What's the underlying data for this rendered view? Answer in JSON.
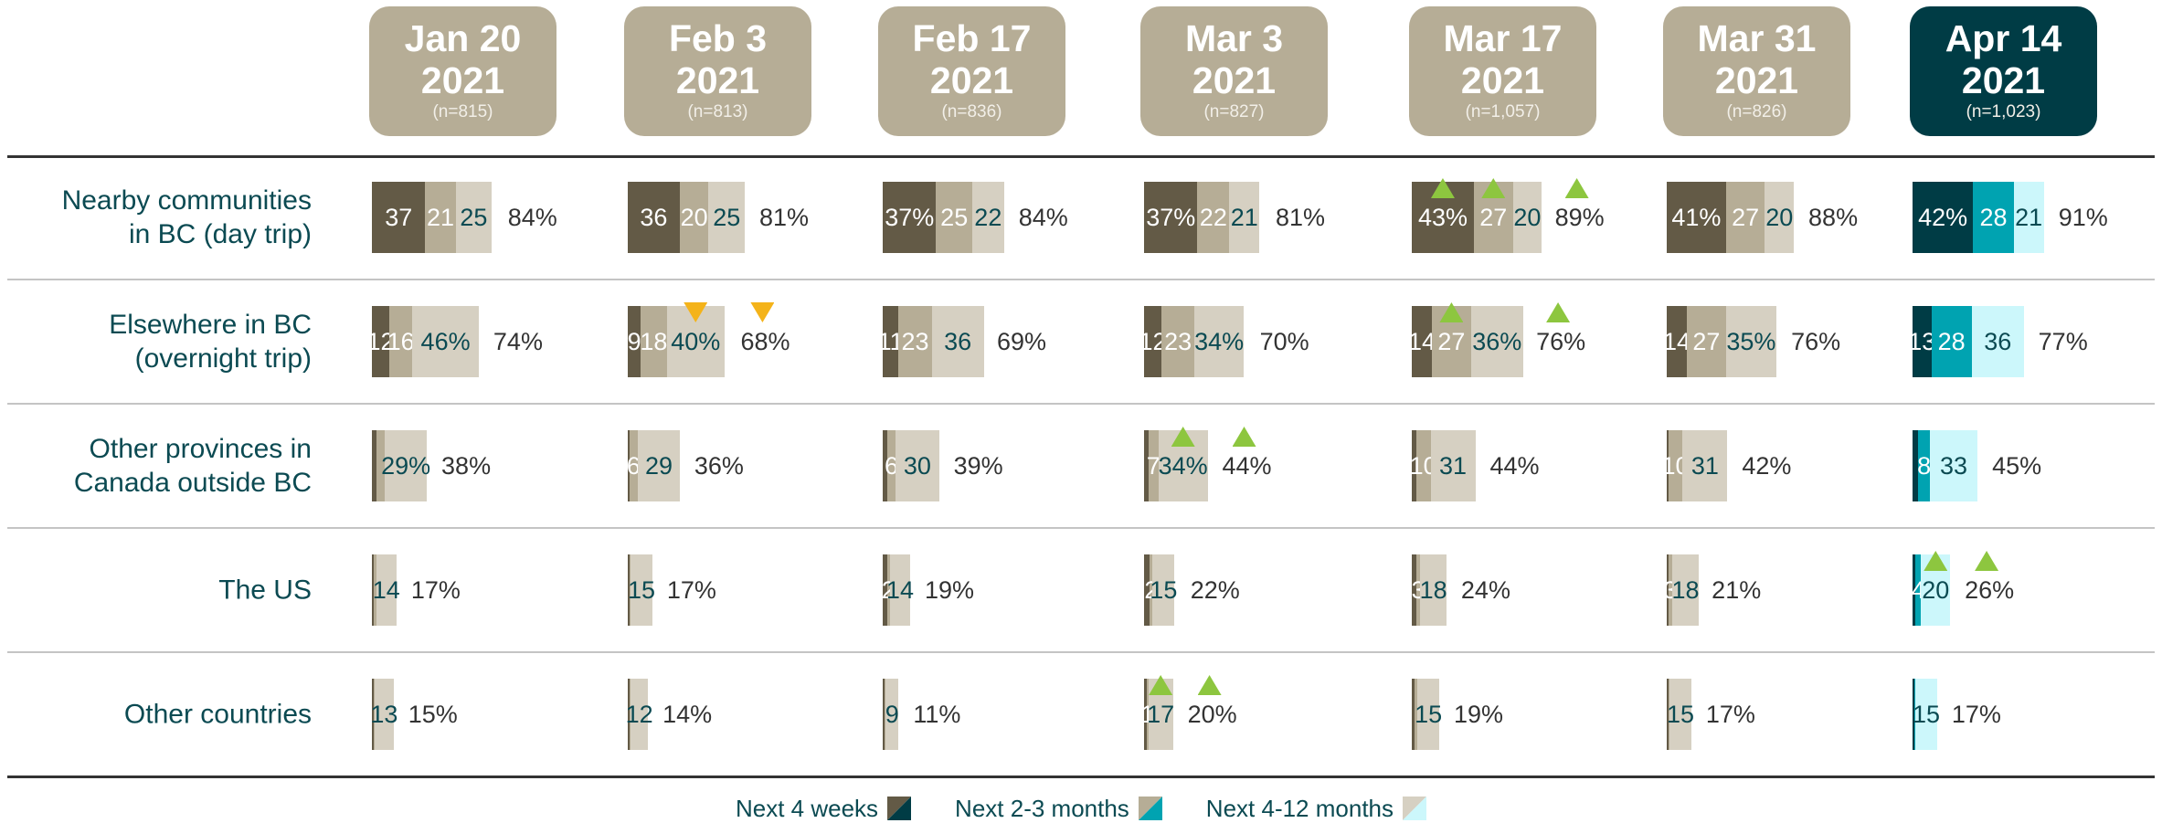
{
  "chart_data": {
    "type": "stacked-bar-grid",
    "groups": [
      {
        "label": "Jan 20",
        "year": "2021",
        "n": "(n=815)",
        "highlighted": false
      },
      {
        "label": "Feb 3",
        "year": "2021",
        "n": "(n=813)",
        "highlighted": false
      },
      {
        "label": "Feb 17",
        "year": "2021",
        "n": "(n=836)",
        "highlighted": false
      },
      {
        "label": "Mar 3",
        "year": "2021",
        "n": "(n=827)",
        "highlighted": false
      },
      {
        "label": "Mar 17",
        "year": "2021",
        "n": "(n=1,057)",
        "highlighted": false
      },
      {
        "label": "Mar 31",
        "year": "2021",
        "n": "(n=826)",
        "highlighted": false
      },
      {
        "label": "Apr 14",
        "year": "2021",
        "n": "(n=1,023)",
        "highlighted": true
      }
    ],
    "categories": [
      "Nearby communities\nin BC (day trip)",
      "Elsewhere in BC\n(overnight trip)",
      "Other provinces in\nCanada outside BC",
      "The US",
      "Other countries"
    ],
    "header_color": "#b6ad96",
    "highlight_color": "#003c45",
    "marker_colors": {
      "up": "#8dc63f",
      "down": "#f4b31a"
    },
    "series": [
      {
        "name": "Next 4 weeks",
        "color": "#635a46",
        "color_current": "#003c45",
        "values": [
          [
            37,
            12,
            3,
            1,
            1
          ],
          [
            36,
            9,
            1,
            1,
            1
          ],
          [
            37,
            11,
            3,
            3,
            1
          ],
          [
            37,
            12,
            3,
            4,
            2
          ],
          [
            43,
            14,
            3,
            3,
            2
          ],
          [
            41,
            14,
            1,
            1,
            1
          ],
          [
            42,
            13,
            4,
            2,
            1
          ]
        ],
        "value_labels": [
          [
            "37",
            "12",
            null,
            null,
            null
          ],
          [
            "36",
            "9",
            null,
            null,
            null
          ],
          [
            "37%",
            "11",
            null,
            null,
            null
          ],
          [
            "37%",
            "12",
            null,
            null,
            null
          ],
          [
            "43%",
            "14",
            null,
            null,
            null
          ],
          [
            "41%",
            "14",
            null,
            null,
            null
          ],
          [
            "42%",
            "13",
            null,
            null,
            null
          ]
        ],
        "changes": [
          [
            null,
            null,
            null,
            null,
            null
          ],
          [
            null,
            null,
            null,
            null,
            null
          ],
          [
            null,
            null,
            null,
            null,
            null
          ],
          [
            null,
            null,
            null,
            null,
            null
          ],
          [
            "up",
            null,
            null,
            null,
            null
          ],
          [
            null,
            null,
            null,
            null,
            null
          ],
          [
            null,
            null,
            null,
            null,
            null
          ]
        ]
      },
      {
        "name": "Next 2-3 months",
        "color": "#b6ad96",
        "color_current": "#00a3b1",
        "values": [
          [
            21,
            16,
            6,
            2,
            1
          ],
          [
            20,
            18,
            6,
            1,
            1
          ],
          [
            25,
            23,
            6,
            2,
            1
          ],
          [
            22,
            23,
            7,
            2,
            1
          ],
          [
            27,
            27,
            10,
            3,
            2
          ],
          [
            27,
            27,
            10,
            3,
            1
          ],
          [
            28,
            28,
            8,
            4,
            1
          ]
        ],
        "value_labels": [
          [
            "21",
            "16",
            null,
            null,
            null
          ],
          [
            "20",
            "18",
            "6",
            null,
            null
          ],
          [
            "25",
            "23",
            "6",
            "2",
            null
          ],
          [
            "22",
            "23",
            "7",
            "2",
            "1"
          ],
          [
            "27",
            "27",
            "10",
            "3",
            null
          ],
          [
            "27",
            "27",
            "10",
            "3",
            null
          ],
          [
            "28",
            "28",
            "8",
            "4",
            null
          ]
        ],
        "changes": [
          [
            null,
            null,
            null,
            null,
            null
          ],
          [
            null,
            null,
            null,
            null,
            null
          ],
          [
            null,
            null,
            null,
            null,
            null
          ],
          [
            null,
            null,
            null,
            null,
            null
          ],
          [
            "up",
            "up",
            null,
            null,
            null
          ],
          [
            null,
            null,
            null,
            null,
            null
          ],
          [
            null,
            null,
            null,
            null,
            null
          ]
        ]
      },
      {
        "name": "Next 4-12 months",
        "color": "#d6d0c2",
        "color_current": "#ccf7fb",
        "values": [
          [
            25,
            46,
            29,
            14,
            13
          ],
          [
            25,
            40,
            29,
            15,
            12
          ],
          [
            22,
            36,
            30,
            14,
            9
          ],
          [
            21,
            34,
            34,
            15,
            17
          ],
          [
            20,
            36,
            31,
            18,
            15
          ],
          [
            20,
            35,
            31,
            18,
            15
          ],
          [
            21,
            36,
            33,
            20,
            15
          ]
        ],
        "value_labels": [
          [
            "25",
            "46%",
            "29%",
            "14",
            "13"
          ],
          [
            "25",
            "40%",
            "29",
            "15",
            "12"
          ],
          [
            "22",
            "36",
            "30",
            "14",
            "9"
          ],
          [
            "21",
            "34%",
            "34%",
            "15",
            "17"
          ],
          [
            "20",
            "36%",
            "31",
            "18",
            "15"
          ],
          [
            "20",
            "35%",
            "31",
            "18",
            "15"
          ],
          [
            "21",
            "36",
            "33",
            "20",
            "15"
          ]
        ],
        "changes": [
          [
            null,
            null,
            null,
            null,
            null
          ],
          [
            null,
            "down",
            null,
            null,
            null
          ],
          [
            null,
            null,
            null,
            null,
            null
          ],
          [
            null,
            null,
            "up",
            null,
            "up"
          ],
          [
            null,
            null,
            null,
            null,
            null
          ],
          [
            null,
            null,
            null,
            null,
            null
          ],
          [
            null,
            null,
            null,
            "up",
            null
          ]
        ]
      }
    ],
    "totals": [
      [
        84,
        74,
        38,
        17,
        15
      ],
      [
        81,
        68,
        36,
        17,
        14
      ],
      [
        84,
        69,
        39,
        19,
        11
      ],
      [
        81,
        70,
        44,
        22,
        20
      ],
      [
        89,
        76,
        44,
        24,
        19
      ],
      [
        88,
        76,
        42,
        21,
        17
      ],
      [
        91,
        77,
        45,
        26,
        17
      ]
    ],
    "total_labels": [
      [
        "84%",
        "74%",
        "38%",
        "17%",
        "15%"
      ],
      [
        "81%",
        "68%",
        "36%",
        "17%",
        "14%"
      ],
      [
        "84%",
        "69%",
        "39%",
        "19%",
        "11%"
      ],
      [
        "81%",
        "70%",
        "44%",
        "22%",
        "20%"
      ],
      [
        "89%",
        "76%",
        "44%",
        "24%",
        "19%"
      ],
      [
        "88%",
        "76%",
        "42%",
        "21%",
        "17%"
      ],
      [
        "91%",
        "77%",
        "45%",
        "26%",
        "17%"
      ]
    ],
    "total_changes": [
      [
        null,
        null,
        null,
        null,
        null
      ],
      [
        null,
        "down",
        null,
        null,
        null
      ],
      [
        null,
        null,
        null,
        null,
        null
      ],
      [
        null,
        null,
        "up",
        null,
        "up"
      ],
      [
        "up",
        "up",
        null,
        null,
        null
      ],
      [
        null,
        null,
        null,
        null,
        null
      ],
      [
        null,
        null,
        null,
        "up",
        null
      ]
    ]
  }
}
